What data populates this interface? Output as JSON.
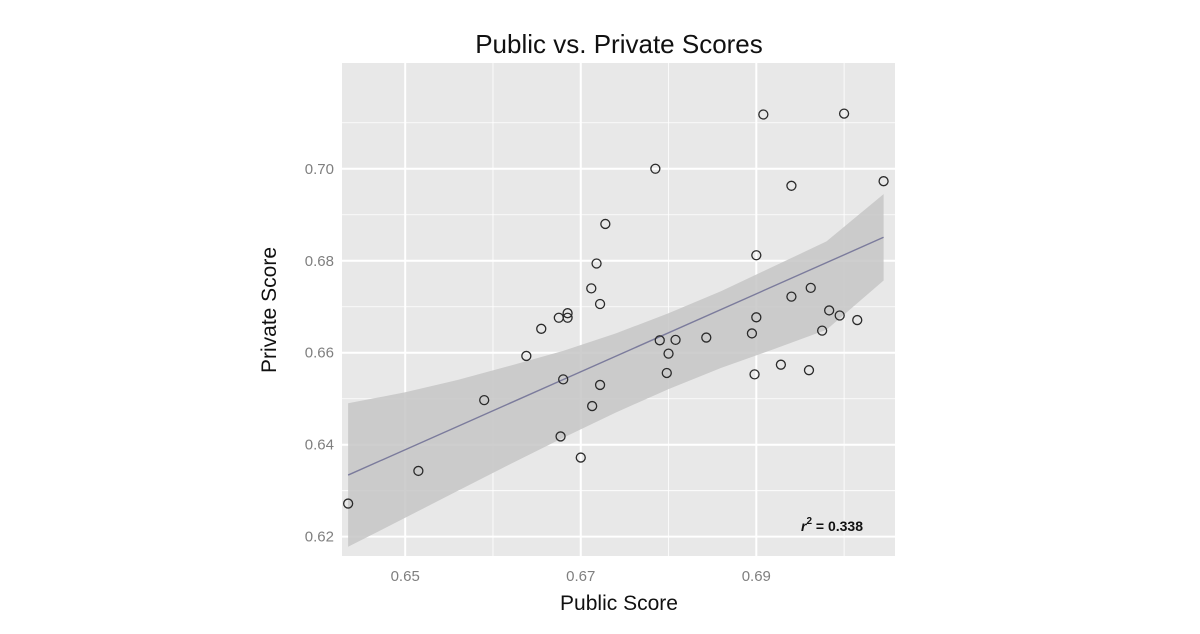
{
  "chart_data": {
    "type": "scatter",
    "title": "Public vs. Private Scores",
    "xlabel": "Public Score",
    "ylabel": "Private Score",
    "xlim": [
      0.6428,
      0.7058
    ],
    "ylim": [
      0.6158,
      0.723
    ],
    "x_ticks": [
      0.65,
      0.67,
      0.69
    ],
    "y_ticks": [
      0.62,
      0.64,
      0.66,
      0.68,
      0.7
    ],
    "x_tick_labels": [
      "0.65",
      "0.67",
      "0.69"
    ],
    "y_tick_labels": [
      "0.62",
      "0.64",
      "0.66",
      "0.68",
      "0.70"
    ],
    "grid": true,
    "points": [
      {
        "x": 0.6435,
        "y": 0.6272
      },
      {
        "x": 0.6515,
        "y": 0.6343
      },
      {
        "x": 0.659,
        "y": 0.6497
      },
      {
        "x": 0.6638,
        "y": 0.6593
      },
      {
        "x": 0.6655,
        "y": 0.6652
      },
      {
        "x": 0.6675,
        "y": 0.6676
      },
      {
        "x": 0.6685,
        "y": 0.6676
      },
      {
        "x": 0.6685,
        "y": 0.6686
      },
      {
        "x": 0.668,
        "y": 0.6542
      },
      {
        "x": 0.6677,
        "y": 0.6418
      },
      {
        "x": 0.67,
        "y": 0.6372
      },
      {
        "x": 0.6712,
        "y": 0.674
      },
      {
        "x": 0.6718,
        "y": 0.6794
      },
      {
        "x": 0.6722,
        "y": 0.6706
      },
      {
        "x": 0.6722,
        "y": 0.653
      },
      {
        "x": 0.6713,
        "y": 0.6484
      },
      {
        "x": 0.6728,
        "y": 0.688
      },
      {
        "x": 0.6785,
        "y": 0.7
      },
      {
        "x": 0.679,
        "y": 0.6627
      },
      {
        "x": 0.6798,
        "y": 0.6556
      },
      {
        "x": 0.68,
        "y": 0.6598
      },
      {
        "x": 0.6808,
        "y": 0.6628
      },
      {
        "x": 0.6843,
        "y": 0.6633
      },
      {
        "x": 0.6895,
        "y": 0.6642
      },
      {
        "x": 0.6898,
        "y": 0.6553
      },
      {
        "x": 0.69,
        "y": 0.6677
      },
      {
        "x": 0.69,
        "y": 0.6812
      },
      {
        "x": 0.6908,
        "y": 0.7118
      },
      {
        "x": 0.6928,
        "y": 0.6574
      },
      {
        "x": 0.694,
        "y": 0.6722
      },
      {
        "x": 0.694,
        "y": 0.6963
      },
      {
        "x": 0.696,
        "y": 0.6562
      },
      {
        "x": 0.6962,
        "y": 0.6741
      },
      {
        "x": 0.6975,
        "y": 0.6648
      },
      {
        "x": 0.6983,
        "y": 0.6692
      },
      {
        "x": 0.6995,
        "y": 0.6681
      },
      {
        "x": 0.7,
        "y": 0.712
      },
      {
        "x": 0.7015,
        "y": 0.6671
      },
      {
        "x": 0.7045,
        "y": 0.6973
      }
    ],
    "fit_line": {
      "x": [
        0.6435,
        0.7045
      ],
      "y": [
        0.6334,
        0.6851
      ]
    },
    "confidence_band": {
      "x": [
        0.6435,
        0.65,
        0.656,
        0.662,
        0.668,
        0.674,
        0.68,
        0.686,
        0.692,
        0.698,
        0.7045
      ],
      "upper": [
        0.649,
        0.6514,
        0.6541,
        0.6572,
        0.6604,
        0.6642,
        0.6686,
        0.6734,
        0.6788,
        0.6842,
        0.6945
      ],
      "lower": [
        0.6178,
        0.6241,
        0.63,
        0.6358,
        0.6415,
        0.647,
        0.6521,
        0.6567,
        0.6608,
        0.665,
        0.6757
      ]
    },
    "annotation": {
      "prefix": "r",
      "sup": "2",
      "suffix": " = 0.338"
    },
    "colors": {
      "panel_bg": "#e8e8e8",
      "grid": "#ffffff",
      "band": "#c6c6c6",
      "line": "#7b7b9c",
      "point_stroke": "#2a2a2a"
    }
  }
}
